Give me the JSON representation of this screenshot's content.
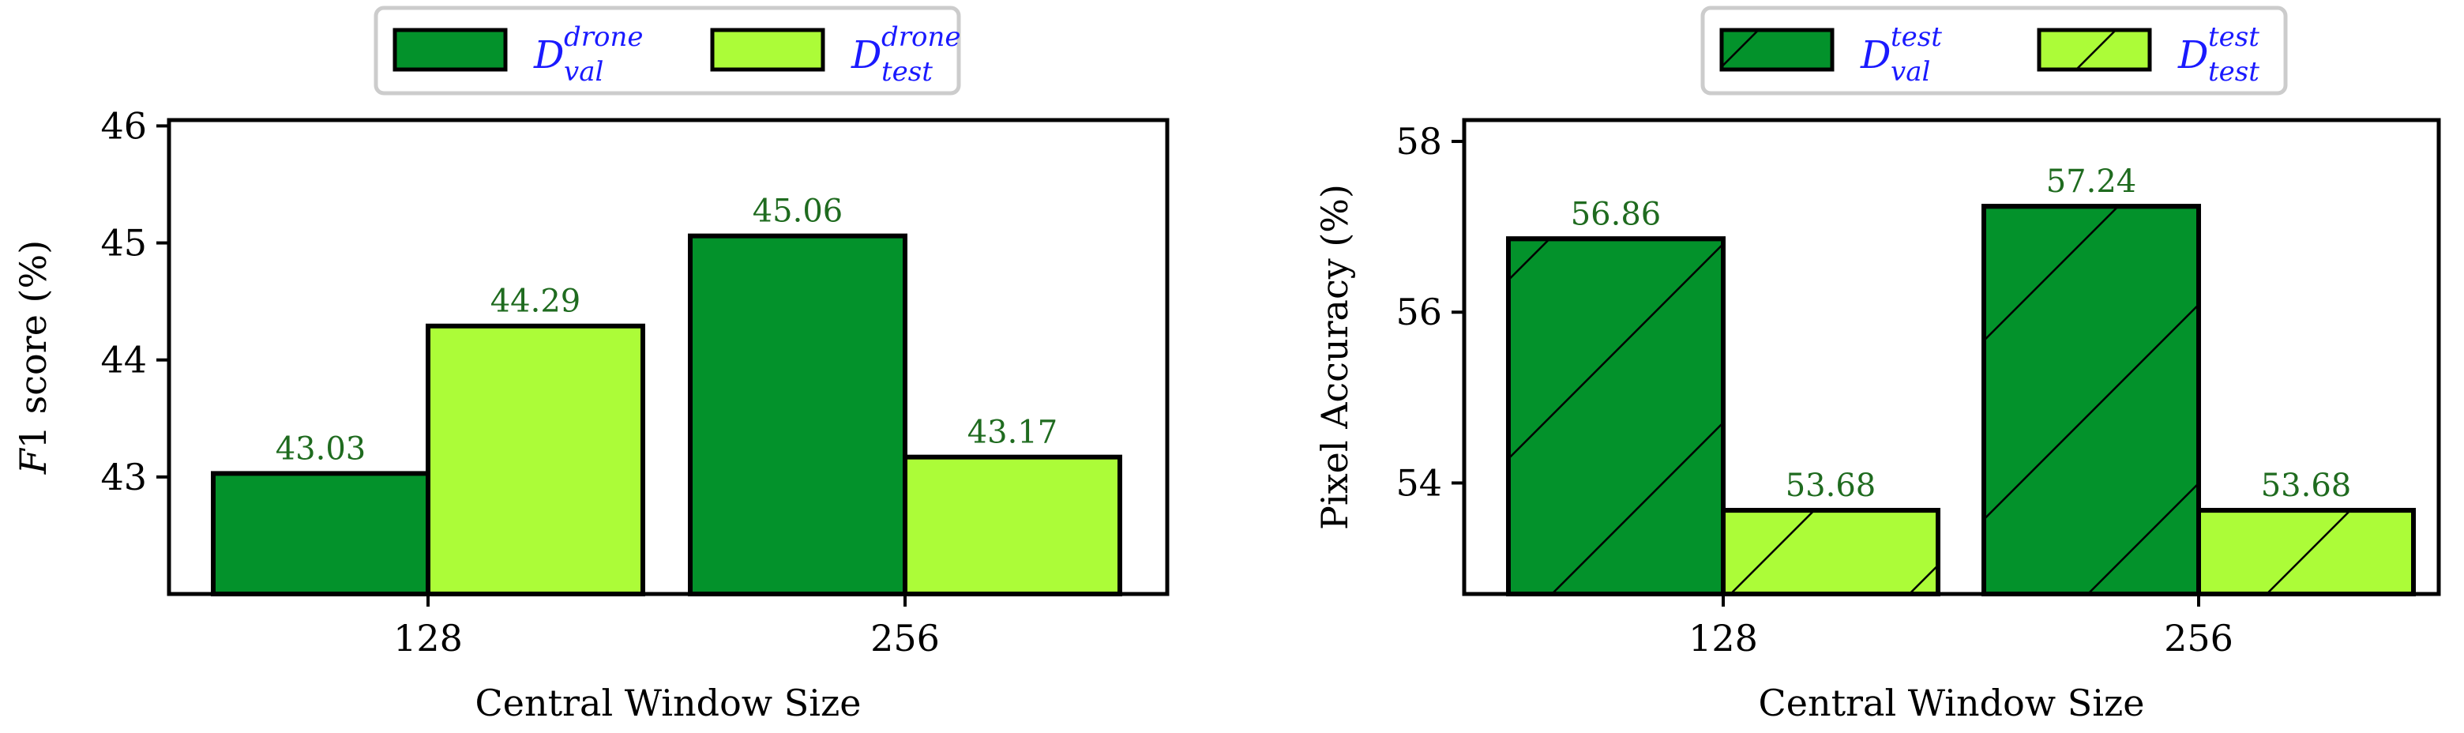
{
  "colors": {
    "dark_green": "#03922b",
    "light_green": "#acfc38",
    "label_green": "#1f6b1f",
    "legend_text": "#1a1aff"
  },
  "chart_data": [
    {
      "type": "bar",
      "ylabel_prefix": "F",
      "ylabel_rest": "1 score (%)",
      "xlabel": "Central Window Size",
      "categories": [
        "128",
        "256"
      ],
      "ylim": [
        42.0,
        46.05
      ],
      "yticks": [
        43,
        44,
        45,
        46
      ],
      "grid": false,
      "legend": "top-center",
      "hatch": false,
      "series": [
        {
          "name": "D_val^drone",
          "legend_base": "D",
          "legend_sup": "drone",
          "legend_sub": "val",
          "color": "#03922b",
          "values": [
            43.03,
            45.06
          ],
          "labels": [
            "43.03",
            "45.06"
          ]
        },
        {
          "name": "D_test^drone",
          "legend_base": "D",
          "legend_sup": "drone",
          "legend_sub": "test",
          "color": "#acfc38",
          "values": [
            44.29,
            43.17
          ],
          "labels": [
            "44.29",
            "43.17"
          ]
        }
      ]
    },
    {
      "type": "bar",
      "ylabel_prefix": "",
      "ylabel_rest": "Pixel Accuracy (%)",
      "xlabel": "Central Window Size",
      "categories": [
        "128",
        "256"
      ],
      "ylim": [
        52.7,
        58.25
      ],
      "yticks": [
        54,
        56,
        58
      ],
      "grid": false,
      "legend": "top-center",
      "hatch": true,
      "series": [
        {
          "name": "D_val^test",
          "legend_base": "D",
          "legend_sup": "test",
          "legend_sub": "val",
          "color": "#03922b",
          "values": [
            56.86,
            57.24
          ],
          "labels": [
            "56.86",
            "57.24"
          ]
        },
        {
          "name": "D_test^test",
          "legend_base": "D",
          "legend_sup": "test",
          "legend_sub": "test",
          "color": "#acfc38",
          "values": [
            53.68,
            53.68
          ],
          "labels": [
            "53.68",
            "53.68"
          ]
        }
      ]
    }
  ]
}
